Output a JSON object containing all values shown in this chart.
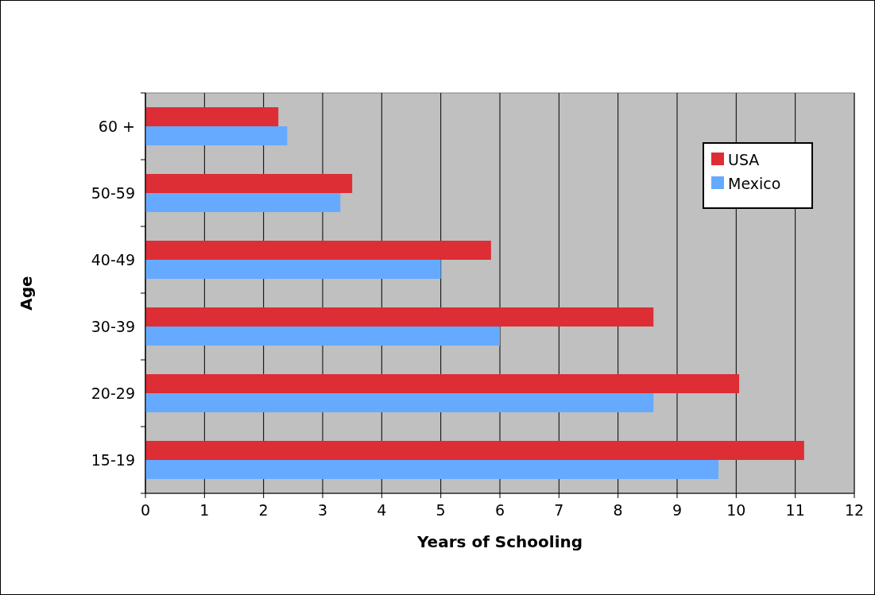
{
  "chart_data": {
    "type": "bar",
    "orientation": "horizontal",
    "xlabel": "Years of Schooling",
    "ylabel": "Age",
    "categories": [
      "60 +",
      "50-59",
      "40-49",
      "30-39",
      "20-29",
      "15-19"
    ],
    "series": [
      {
        "name": "USA",
        "color": "#dd2d35",
        "values": [
          2.25,
          3.5,
          5.85,
          8.6,
          10.05,
          11.15
        ]
      },
      {
        "name": "Mexico",
        "color": "#66aaff",
        "values": [
          2.4,
          3.3,
          5.0,
          6.0,
          8.6,
          9.7
        ]
      }
    ],
    "xlim": [
      0,
      12
    ],
    "xticks": [
      0,
      1,
      2,
      3,
      4,
      5,
      6,
      7,
      8,
      9,
      10,
      11,
      12
    ],
    "grid": "x",
    "legend": "top right"
  }
}
